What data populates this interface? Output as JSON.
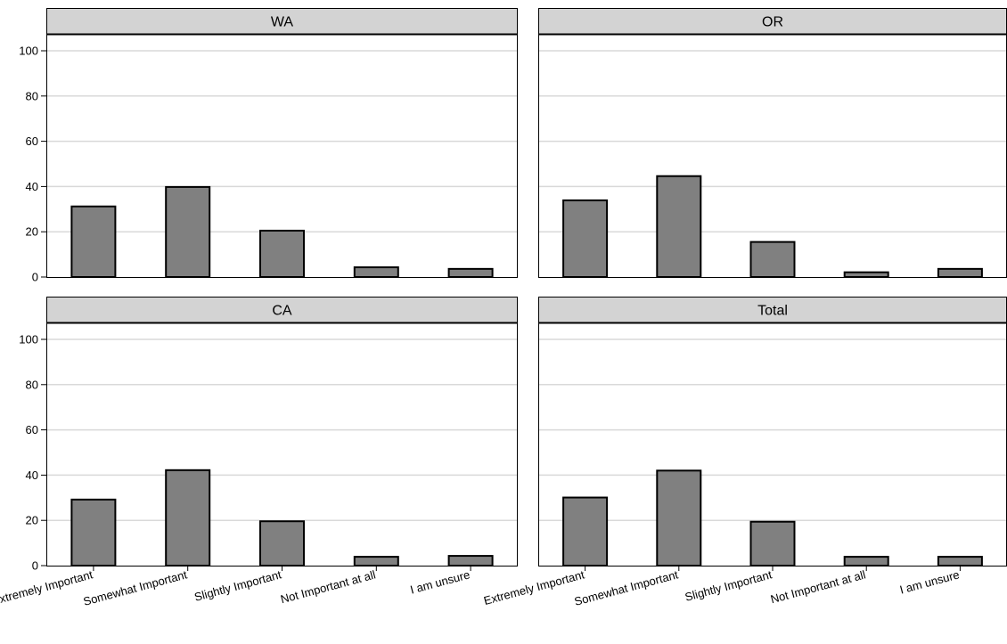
{
  "chart_data": {
    "type": "bar",
    "categories": [
      "Extremely Important",
      "Somewhat Important",
      "Slightly Important",
      "Not Important at all",
      "I am unsure"
    ],
    "ylim": [
      0,
      100
    ],
    "yticks": [
      0,
      20,
      40,
      60,
      80,
      100
    ],
    "ytick_labels": [
      "0",
      "20",
      "40",
      "60",
      "80",
      "100"
    ],
    "grid": true,
    "bar_color": "#808080",
    "strip_color": "#d3d3d3",
    "panels": [
      {
        "title": "WA",
        "values": [
          31.2,
          39.8,
          20.5,
          4.3,
          3.6
        ]
      },
      {
        "title": "OR",
        "values": [
          33.9,
          44.6,
          15.5,
          2.1,
          3.6
        ]
      },
      {
        "title": "CA",
        "values": [
          29.2,
          42.2,
          19.6,
          3.9,
          4.3
        ]
      },
      {
        "title": "Total",
        "values": [
          30.1,
          42.0,
          19.4,
          3.9,
          3.9
        ]
      }
    ]
  }
}
